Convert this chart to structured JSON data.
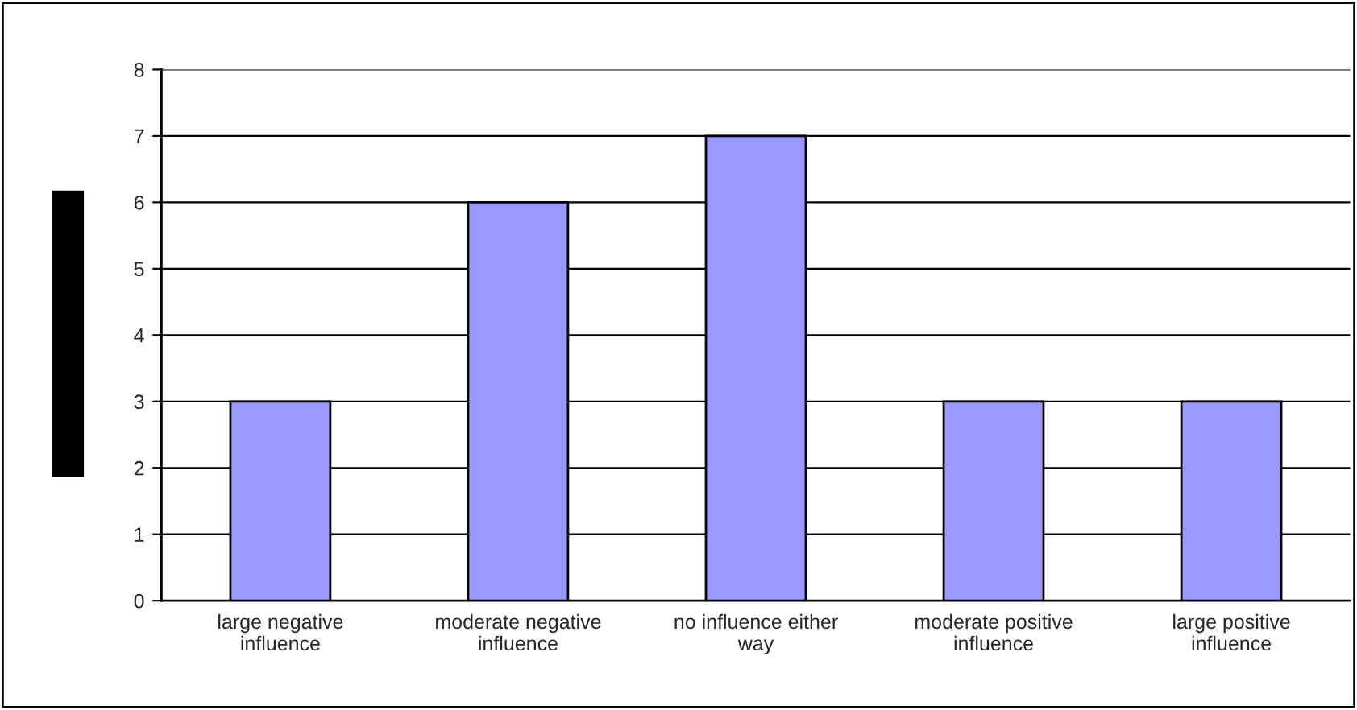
{
  "chart_data": {
    "type": "bar",
    "categories": [
      "large negative\ninfluence",
      "moderate negative\ninfluence",
      "no influence either\nway",
      "moderate positive\ninfluence",
      "large positive\ninfluence"
    ],
    "values": [
      3,
      6,
      7,
      3,
      3
    ],
    "color": "#9999ff",
    "ylim": [
      0,
      8
    ],
    "yticks": [
      0,
      1,
      2,
      3,
      4,
      5,
      6,
      7,
      8
    ],
    "grid": "y",
    "legend": false
  }
}
